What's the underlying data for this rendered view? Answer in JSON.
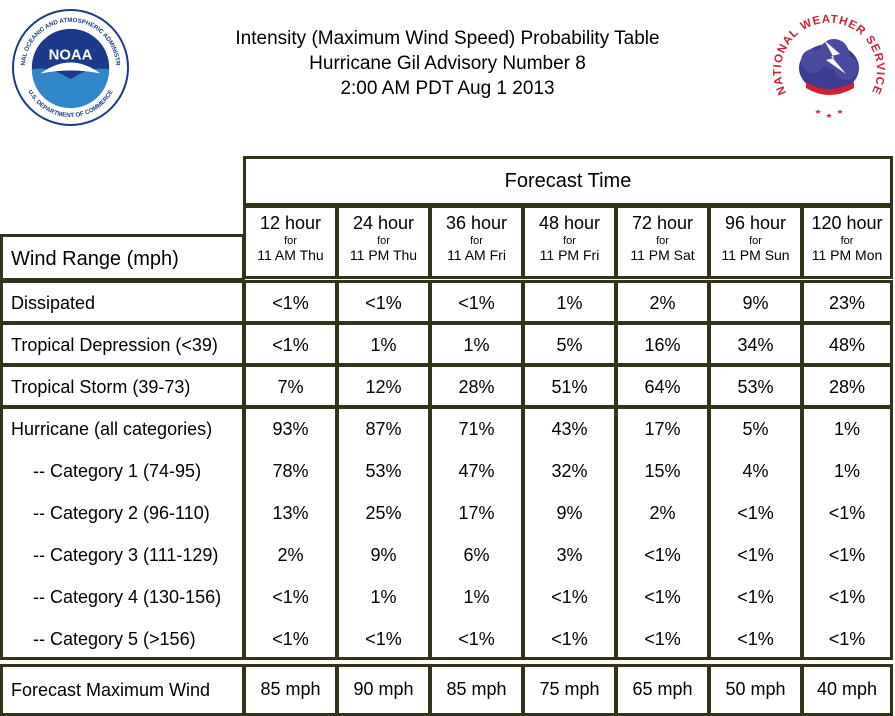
{
  "title": {
    "line1": "Intensity (Maximum Wind Speed) Probability Table",
    "line2": "Hurricane Gil Advisory Number 8",
    "line3": "2:00 AM PDT Aug 1 2013"
  },
  "logos": {
    "noaa_text": "NOAA",
    "noaa_ring_top": "NATIONAL OCEANIC AND ATMOSPHERIC ADMINISTRATION",
    "noaa_ring_bottom": "U.S. DEPARTMENT OF COMMERCE",
    "nws_ring": "NATIONAL WEATHER SERVICE"
  },
  "header": {
    "forecast_time": "Forecast Time",
    "wind_range": "Wind Range (mph)",
    "columns": [
      {
        "hours": "12 hour",
        "for": "for",
        "when": "11 AM Thu"
      },
      {
        "hours": "24 hour",
        "for": "for",
        "when": "11 PM Thu"
      },
      {
        "hours": "36 hour",
        "for": "for",
        "when": "11 AM Fri"
      },
      {
        "hours": "48 hour",
        "for": "for",
        "when": "11 PM Fri"
      },
      {
        "hours": "72 hour",
        "for": "for",
        "when": "11 PM Sat"
      },
      {
        "hours": "96 hour",
        "for": "for",
        "when": "11 PM Sun"
      },
      {
        "hours": "120 hour",
        "for": "for",
        "when": "11 PM Mon"
      }
    ]
  },
  "rows": [
    {
      "label": "Dissipated",
      "values": [
        "<1%",
        "<1%",
        "<1%",
        "1%",
        "2%",
        "9%",
        "23%"
      ]
    },
    {
      "label": "Tropical Depression (<39)",
      "values": [
        "<1%",
        "1%",
        "1%",
        "5%",
        "16%",
        "34%",
        "48%"
      ]
    },
    {
      "label": "Tropical Storm (39-73)",
      "values": [
        "7%",
        "12%",
        "28%",
        "51%",
        "64%",
        "53%",
        "28%"
      ]
    }
  ],
  "hurricane": [
    {
      "label": "Hurricane (all categories)",
      "values": [
        "93%",
        "87%",
        "71%",
        "43%",
        "17%",
        "5%",
        "1%"
      ]
    },
    {
      "label": "-- Category 1 (74-95)",
      "values": [
        "78%",
        "53%",
        "47%",
        "32%",
        "15%",
        "4%",
        "1%"
      ]
    },
    {
      "label": "-- Category 2 (96-110)",
      "values": [
        "13%",
        "25%",
        "17%",
        "9%",
        "2%",
        "<1%",
        "<1%"
      ]
    },
    {
      "label": "-- Category 3 (111-129)",
      "values": [
        "2%",
        "9%",
        "6%",
        "3%",
        "<1%",
        "<1%",
        "<1%"
      ]
    },
    {
      "label": "-- Category 4 (130-156)",
      "values": [
        "<1%",
        "1%",
        "1%",
        "<1%",
        "<1%",
        "<1%",
        "<1%"
      ]
    },
    {
      "label": "-- Category 5 (>156)",
      "values": [
        "<1%",
        "<1%",
        "<1%",
        "<1%",
        "<1%",
        "<1%",
        "<1%"
      ]
    }
  ],
  "max_wind": {
    "label": "Forecast Maximum Wind",
    "values": [
      "85 mph",
      "90 mph",
      "85 mph",
      "75 mph",
      "65 mph",
      "50 mph",
      "40 mph"
    ]
  },
  "colors": {
    "border": "#33331a",
    "noaa_blue": "#1c3a8a",
    "noaa_light": "#2f86c8",
    "nws_red": "#cc2233",
    "nws_purple": "#3b3b8f"
  }
}
